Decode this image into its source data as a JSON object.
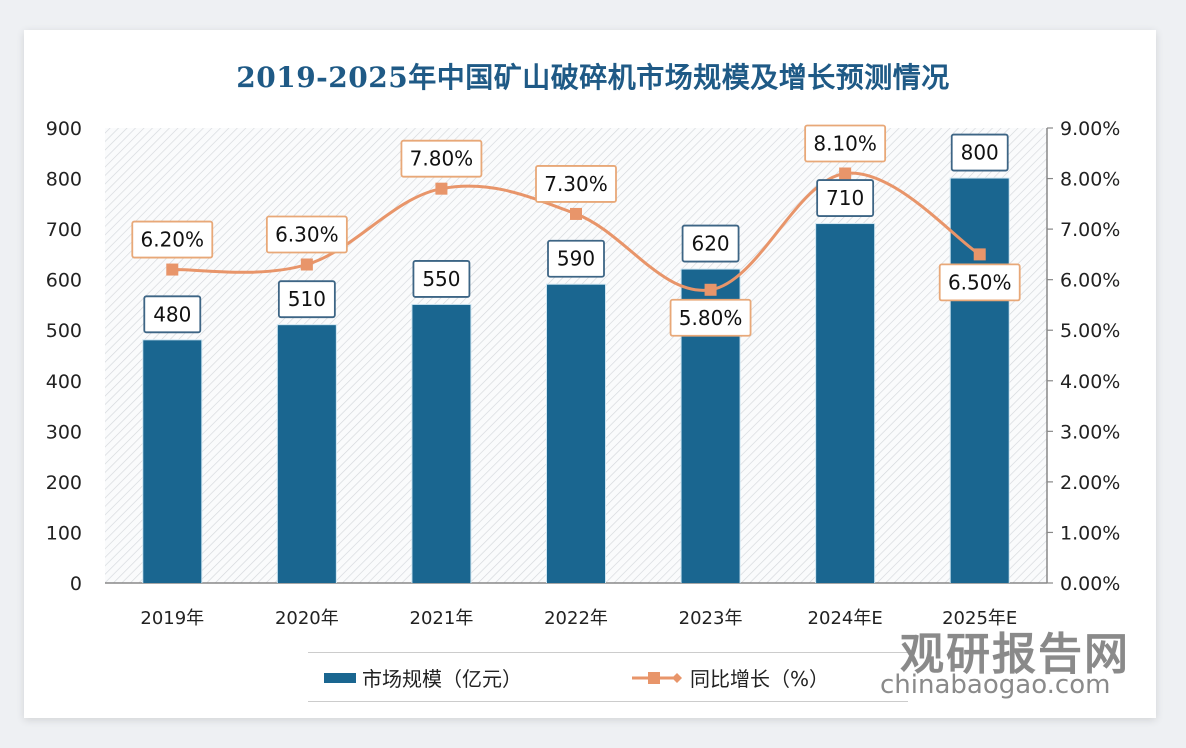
{
  "chart_data": {
    "type": "bar",
    "title": "2019-2025年中国矿山破碎机市场规模及增长预测情况",
    "categories": [
      "2019年",
      "2020年",
      "2021年",
      "2022年",
      "2023年",
      "2024年E",
      "2025年E"
    ],
    "series": [
      {
        "name": "市场规模（亿元）",
        "type": "bar",
        "axis": "left",
        "color": "#1a6690",
        "values": [
          480,
          510,
          550,
          590,
          620,
          710,
          800
        ],
        "labels": [
          "480",
          "510",
          "550",
          "590",
          "620",
          "710",
          "800"
        ]
      },
      {
        "name": "同比增长（%）",
        "type": "line",
        "axis": "right",
        "color": "#e8956a",
        "values": [
          6.2,
          6.3,
          7.8,
          7.3,
          5.8,
          8.1,
          6.5
        ],
        "labels": [
          "6.20%",
          "6.30%",
          "7.80%",
          "7.30%",
          "5.80%",
          "8.10%",
          "6.50%"
        ]
      }
    ],
    "ylim_left": [
      0,
      900
    ],
    "ylim_right": [
      0,
      9
    ],
    "yticks_left": [
      "0",
      "100",
      "200",
      "300",
      "400",
      "500",
      "600",
      "700",
      "800",
      "900"
    ],
    "yticks_right": [
      "0.00%",
      "1.00%",
      "2.00%",
      "3.00%",
      "4.00%",
      "5.00%",
      "6.00%",
      "7.00%",
      "8.00%",
      "9.00%"
    ],
    "xlabel": "",
    "ylabel": "",
    "legend_position": "bottom",
    "grid": false
  },
  "legend": {
    "bar_label": "市场规模（亿元）",
    "line_label": "同比增长（%）"
  },
  "watermark": {
    "cn": "观研报告网",
    "en": "chinabaogao.com"
  }
}
